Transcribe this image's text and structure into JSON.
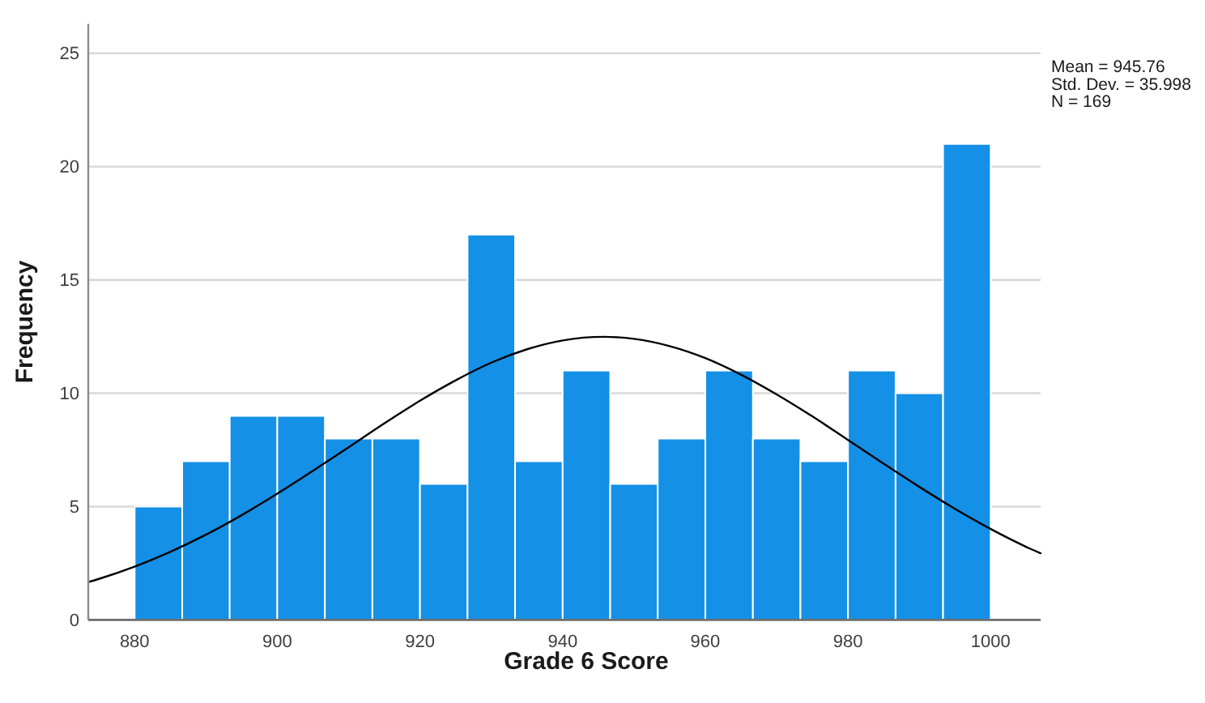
{
  "chart_data": {
    "type": "histogram",
    "xlabel": "Grade 6 Score",
    "ylabel": "Frequency",
    "annotations": [
      "Mean = 945.76",
      "Std. Dev. = 35.998",
      "N = 169"
    ],
    "bins": [
      880,
      886.67,
      893.33,
      900,
      906.67,
      913.33,
      920,
      926.67,
      933.33,
      940,
      946.67,
      953.33,
      960,
      966.67,
      973.33,
      980,
      986.67,
      993.33,
      1000
    ],
    "series": [
      {
        "color": "#1490e6",
        "values": [
          5,
          7,
          9,
          9,
          8,
          8,
          6,
          17,
          7,
          11,
          6,
          8,
          11,
          8,
          7,
          11,
          10,
          21
        ]
      },
      {
        "type": "line",
        "color": "#000000",
        "x": [
          873.5,
          875,
          880,
          885,
          890,
          895,
          900,
          905,
          910,
          915,
          920,
          925,
          930,
          935,
          940,
          945.76,
          950,
          955,
          960,
          965,
          970,
          975,
          980,
          985,
          990,
          995,
          1000,
          1005,
          1007
        ],
        "values": [
          1.67,
          1.81,
          2.35,
          3.0,
          3.76,
          4.62,
          5.57,
          6.58,
          7.62,
          8.67,
          9.67,
          10.57,
          11.35,
          11.94,
          12.33,
          12.49,
          12.4,
          12.08,
          11.55,
          10.82,
          9.95,
          8.98,
          7.94,
          6.89,
          5.87,
          4.9,
          4.01,
          3.22,
          2.94
        ]
      }
    ],
    "xlim": [
      873.5,
      1007
    ],
    "xticks": [
      880,
      900,
      920,
      940,
      960,
      980,
      1000
    ],
    "ylim": [
      0,
      26.3
    ],
    "yticks": [
      0,
      5,
      10,
      15,
      20,
      25
    ],
    "grid": "y"
  }
}
